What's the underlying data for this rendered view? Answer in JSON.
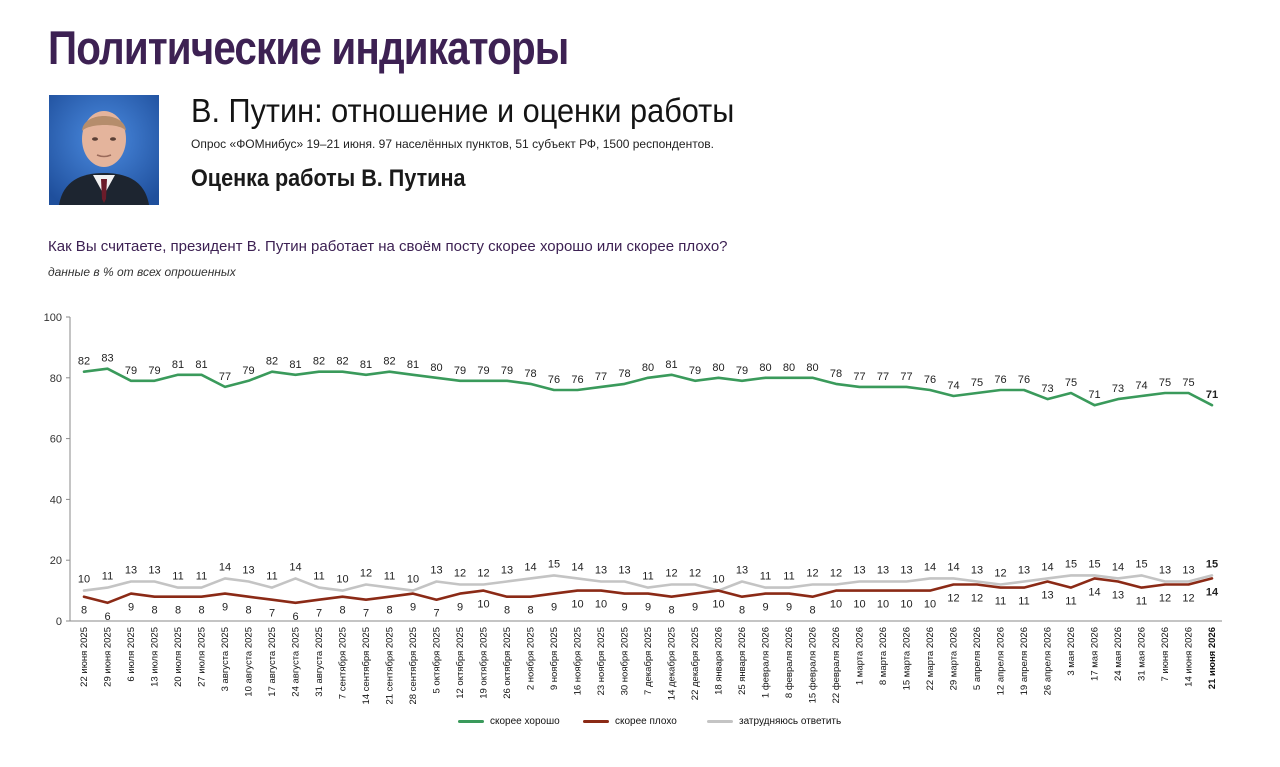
{
  "header": {
    "brand": "Политические индикаторы",
    "title": "В. Путин: отношение и оценки работы",
    "survey": "Опрос «ФОМнибус» 19–21 июня. 97 населённых пунктов, 51 субъект РФ, 1500 респондентов.",
    "section": "Оценка работы В. Путина"
  },
  "question": "Как Вы считаете, президент В. Путин работает на своём посту скорее хорошо или скорее плохо?",
  "note": "данные в % от всех опрошенных",
  "legend": {
    "good": "скорее хорошо",
    "bad": "скорее плохо",
    "unsure": "затрудняюсь ответить"
  },
  "chart_data": {
    "type": "line",
    "ylim": [
      0,
      100
    ],
    "yticks": [
      0,
      20,
      40,
      60,
      80,
      100
    ],
    "grid": false,
    "legend_position": "bottom",
    "categories": [
      "22 июня 2025",
      "29 июня 2025",
      "6 июля 2025",
      "13 июля 2025",
      "20 июля 2025",
      "27 июля 2025",
      "3 августа 2025",
      "10 августа 2025",
      "17 августа 2025",
      "24 августа 2025",
      "31 августа 2025",
      "7 сентября 2025",
      "14 сентября 2025",
      "21 сентября 2025",
      "28 сентября 2025",
      "5 октября 2025",
      "12 октября 2025",
      "19 октября 2025",
      "26 октября 2025",
      "2 ноября 2025",
      "9 ноября 2025",
      "16 ноября 2025",
      "23 ноября 2025",
      "30 ноября 2025",
      "7 декабря 2025",
      "14 декабря 2025",
      "22 декабря 2025",
      "18 января 2026",
      "25 января 2026",
      "1 февраля 2026",
      "8 февраля 2026",
      "15 февраля 2026",
      "22 февраля 2026",
      "1 марта 2026",
      "8 марта 2026",
      "15 марта 2026",
      "22 марта 2026",
      "29 марта 2026",
      "5 апреля 2026",
      "12 апреля 2026",
      "19 апреля 2026",
      "26 апреля 2026",
      "3 мая 2026",
      "17 мая 2026",
      "24 мая 2026",
      "31 мая 2026",
      "7 июня 2026",
      "14 июня 2026",
      "21 июня 2026"
    ],
    "series": [
      {
        "name": "скорее хорошо",
        "color": "#3a9a5b",
        "values": [
          82,
          83,
          79,
          79,
          81,
          81,
          77,
          79,
          82,
          81,
          82,
          82,
          81,
          82,
          81,
          80,
          79,
          79,
          79,
          78,
          76,
          76,
          77,
          78,
          80,
          81,
          79,
          80,
          79,
          80,
          80,
          80,
          78,
          77,
          77,
          77,
          76,
          74,
          75,
          76,
          76,
          73,
          75,
          71,
          73,
          74,
          75,
          75,
          71
        ]
      },
      {
        "name": "скорее плохо",
        "color": "#8b2a16",
        "values": [
          8,
          6,
          9,
          8,
          8,
          8,
          9,
          8,
          7,
          6,
          7,
          8,
          7,
          8,
          9,
          7,
          9,
          10,
          8,
          8,
          9,
          10,
          10,
          9,
          9,
          8,
          9,
          10,
          8,
          9,
          9,
          8,
          10,
          10,
          10,
          10,
          10,
          12,
          12,
          11,
          11,
          13,
          11,
          14,
          13,
          11,
          12,
          12,
          14
        ]
      },
      {
        "name": "затрудняюсь ответить",
        "color": "#c4c4c4",
        "values": [
          10,
          11,
          13,
          13,
          11,
          11,
          14,
          13,
          11,
          14,
          11,
          10,
          12,
          11,
          10,
          13,
          12,
          12,
          13,
          14,
          15,
          14,
          13,
          13,
          11,
          12,
          12,
          10,
          13,
          11,
          11,
          12,
          12,
          13,
          13,
          13,
          14,
          14,
          13,
          12,
          13,
          14,
          15,
          15,
          14,
          15,
          13,
          13,
          15
        ]
      }
    ]
  }
}
